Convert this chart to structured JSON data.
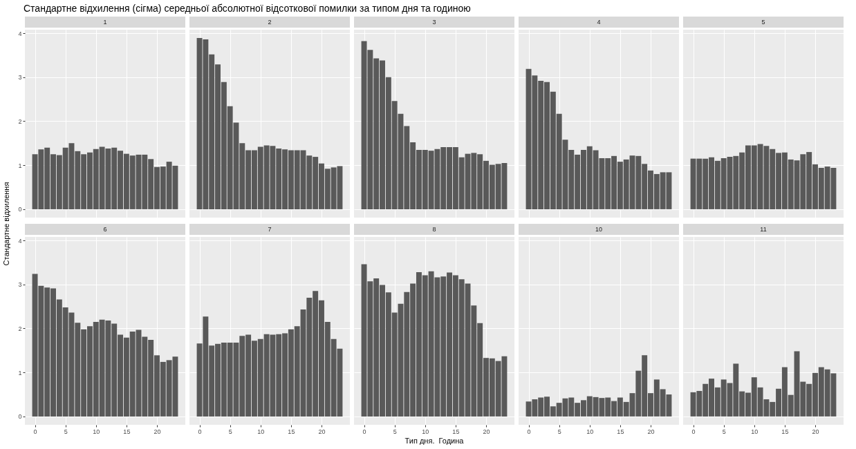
{
  "chart_data": [
    {
      "type": "bar",
      "title": "1",
      "annotations": [
        "Стандартне відхилення (сігма) середньої абсолютної відсоткової помилки за типом дня та годиною"
      ],
      "ylabel": "Стандартне відхилення",
      "color": "#595959",
      "x": [
        0,
        1,
        2,
        3,
        4,
        5,
        6,
        7,
        8,
        9,
        10,
        11,
        12,
        13,
        14,
        15,
        16,
        17,
        18,
        19,
        20,
        21,
        22,
        23
      ],
      "values": [
        1.25,
        1.36,
        1.4,
        1.25,
        1.23,
        1.4,
        1.5,
        1.32,
        1.25,
        1.29,
        1.37,
        1.42,
        1.38,
        1.4,
        1.33,
        1.26,
        1.22,
        1.24,
        1.24,
        1.14,
        0.96,
        0.97,
        1.08,
        0.99
      ],
      "xlim": [
        -1.65,
        24.65
      ],
      "xticks": [
        0,
        5,
        10,
        15,
        20
      ],
      "ylim": [
        -0.19,
        4.08
      ],
      "yticks": [
        0,
        1,
        2,
        3,
        4
      ],
      "grid": true,
      "tick_labels": "y"
    },
    {
      "type": "bar",
      "title": "2",
      "color": "#595959",
      "x": [
        0,
        1,
        2,
        3,
        4,
        5,
        6,
        7,
        8,
        9,
        10,
        11,
        12,
        13,
        14,
        15,
        16,
        17,
        18,
        19,
        20,
        21,
        22,
        23
      ],
      "values": [
        3.89,
        3.86,
        3.52,
        3.29,
        2.89,
        2.34,
        1.97,
        1.5,
        1.34,
        1.34,
        1.42,
        1.45,
        1.44,
        1.38,
        1.36,
        1.34,
        1.34,
        1.34,
        1.22,
        1.19,
        1.04,
        0.92,
        0.95,
        0.98
      ],
      "xlim": [
        -1.65,
        24.65
      ],
      "xticks": [
        0,
        5,
        10,
        15,
        20
      ],
      "ylim": [
        -0.19,
        4.08
      ],
      "yticks": [
        0,
        1,
        2,
        3,
        4
      ],
      "grid": true,
      "tick_labels": false
    },
    {
      "type": "bar",
      "title": "3",
      "color": "#595959",
      "x": [
        0,
        1,
        2,
        3,
        4,
        5,
        6,
        7,
        8,
        9,
        10,
        11,
        12,
        13,
        14,
        15,
        16,
        17,
        18,
        19,
        20,
        21,
        22,
        23
      ],
      "values": [
        3.82,
        3.62,
        3.43,
        3.38,
        3.0,
        2.46,
        2.17,
        1.89,
        1.52,
        1.35,
        1.35,
        1.33,
        1.37,
        1.41,
        1.41,
        1.41,
        1.18,
        1.26,
        1.28,
        1.25,
        1.1,
        1.01,
        1.03,
        1.05
      ],
      "xlim": [
        -1.65,
        24.65
      ],
      "xticks": [
        0,
        5,
        10,
        15,
        20
      ],
      "ylim": [
        -0.19,
        4.08
      ],
      "yticks": [
        0,
        1,
        2,
        3,
        4
      ],
      "grid": true,
      "tick_labels": false
    },
    {
      "type": "bar",
      "title": "4",
      "color": "#595959",
      "x": [
        0,
        1,
        2,
        3,
        4,
        5,
        6,
        7,
        8,
        9,
        10,
        11,
        12,
        13,
        14,
        15,
        16,
        17,
        18,
        19,
        20,
        21,
        22,
        23
      ],
      "values": [
        3.19,
        3.04,
        2.92,
        2.89,
        2.67,
        2.17,
        1.58,
        1.35,
        1.24,
        1.35,
        1.43,
        1.34,
        1.16,
        1.16,
        1.21,
        1.08,
        1.13,
        1.22,
        1.21,
        1.03,
        0.88,
        0.8,
        0.84,
        0.84
      ],
      "xlim": [
        -1.65,
        24.65
      ],
      "xticks": [
        0,
        5,
        10,
        15,
        20
      ],
      "ylim": [
        -0.19,
        4.08
      ],
      "yticks": [
        0,
        1,
        2,
        3,
        4
      ],
      "grid": true,
      "tick_labels": false
    },
    {
      "type": "bar",
      "title": "5",
      "color": "#595959",
      "x": [
        0,
        1,
        2,
        3,
        4,
        5,
        6,
        7,
        8,
        9,
        10,
        11,
        12,
        13,
        14,
        15,
        16,
        17,
        18,
        19,
        20,
        21,
        22,
        23
      ],
      "values": [
        1.15,
        1.15,
        1.15,
        1.18,
        1.1,
        1.16,
        1.19,
        1.21,
        1.29,
        1.45,
        1.45,
        1.48,
        1.44,
        1.37,
        1.28,
        1.29,
        1.13,
        1.11,
        1.25,
        1.3,
        1.02,
        0.94,
        0.97,
        0.94
      ],
      "xlim": [
        -1.65,
        24.65
      ],
      "xticks": [
        0,
        5,
        10,
        15,
        20
      ],
      "ylim": [
        -0.19,
        4.08
      ],
      "yticks": [
        0,
        1,
        2,
        3,
        4
      ],
      "grid": true,
      "tick_labels": false
    },
    {
      "type": "bar",
      "title": "6",
      "color": "#595959",
      "x": [
        0,
        1,
        2,
        3,
        4,
        5,
        6,
        7,
        8,
        9,
        10,
        11,
        12,
        13,
        14,
        15,
        16,
        17,
        18,
        19,
        20,
        21,
        22,
        23
      ],
      "values": [
        3.24,
        2.97,
        2.93,
        2.91,
        2.66,
        2.48,
        2.36,
        2.13,
        1.98,
        2.05,
        2.15,
        2.2,
        2.18,
        2.11,
        1.86,
        1.79,
        1.93,
        1.97,
        1.81,
        1.74,
        1.39,
        1.24,
        1.28,
        1.36
      ],
      "xlim": [
        -1.65,
        24.65
      ],
      "xticks": [
        0,
        5,
        10,
        15,
        20
      ],
      "ylim": [
        -0.19,
        4.08
      ],
      "yticks": [
        0,
        1,
        2,
        3,
        4
      ],
      "grid": true
    },
    {
      "type": "bar",
      "title": "7",
      "color": "#595959",
      "x": [
        0,
        1,
        2,
        3,
        4,
        5,
        6,
        7,
        8,
        9,
        10,
        11,
        12,
        13,
        14,
        15,
        16,
        17,
        18,
        19,
        20,
        21,
        22,
        23
      ],
      "values": [
        1.66,
        2.27,
        1.61,
        1.65,
        1.68,
        1.68,
        1.68,
        1.83,
        1.86,
        1.72,
        1.76,
        1.87,
        1.86,
        1.87,
        1.89,
        1.98,
        2.05,
        2.43,
        2.7,
        2.85,
        2.64,
        2.15,
        1.76,
        1.54
      ],
      "xlim": [
        -1.65,
        24.65
      ],
      "xticks": [
        0,
        5,
        10,
        15,
        20
      ],
      "ylim": [
        -0.19,
        4.08
      ],
      "yticks": [
        0,
        1,
        2,
        3,
        4
      ],
      "grid": true,
      "tick_labels": "x"
    },
    {
      "type": "bar",
      "title": "8",
      "xlabel": "Тип дня.  Година",
      "color": "#595959",
      "x": [
        0,
        1,
        2,
        3,
        4,
        5,
        6,
        7,
        8,
        9,
        10,
        11,
        12,
        13,
        14,
        15,
        16,
        17,
        18,
        19,
        20,
        21,
        22,
        23
      ],
      "values": [
        3.46,
        3.07,
        3.14,
        2.99,
        2.82,
        2.36,
        2.56,
        2.83,
        3.02,
        3.28,
        3.21,
        3.3,
        3.16,
        3.18,
        3.27,
        3.21,
        3.12,
        3.02,
        2.52,
        2.12,
        1.33,
        1.32,
        1.26,
        1.37
      ],
      "xlim": [
        -1.65,
        24.65
      ],
      "xticks": [
        0,
        5,
        10,
        15,
        20
      ],
      "ylim": [
        -0.19,
        4.08
      ],
      "yticks": [
        0,
        1,
        2,
        3,
        4
      ],
      "grid": true,
      "tick_labels": "x"
    },
    {
      "type": "bar",
      "title": "10",
      "color": "#595959",
      "x": [
        0,
        1,
        2,
        3,
        4,
        5,
        6,
        7,
        8,
        9,
        10,
        11,
        12,
        13,
        14,
        15,
        16,
        17,
        18,
        19,
        20,
        21,
        22,
        23
      ],
      "values": [
        0.34,
        0.39,
        0.43,
        0.45,
        0.23,
        0.31,
        0.41,
        0.43,
        0.31,
        0.37,
        0.46,
        0.44,
        0.42,
        0.43,
        0.35,
        0.43,
        0.33,
        0.53,
        1.04,
        1.39,
        0.53,
        0.84,
        0.62,
        0.5
      ],
      "xlim": [
        -1.65,
        24.65
      ],
      "xticks": [
        0,
        5,
        10,
        15,
        20
      ],
      "ylim": [
        -0.19,
        4.08
      ],
      "yticks": [
        0,
        1,
        2,
        3,
        4
      ],
      "grid": true,
      "tick_labels": "x"
    },
    {
      "type": "bar",
      "title": "11",
      "color": "#595959",
      "x": [
        0,
        1,
        2,
        3,
        4,
        5,
        6,
        7,
        8,
        9,
        10,
        11,
        12,
        13,
        14,
        15,
        16,
        17,
        18,
        19,
        20,
        21,
        22,
        23
      ],
      "values": [
        0.55,
        0.58,
        0.74,
        0.86,
        0.66,
        0.84,
        0.76,
        1.2,
        0.57,
        0.54,
        0.89,
        0.66,
        0.39,
        0.33,
        0.63,
        1.12,
        0.49,
        1.48,
        0.79,
        0.74,
        0.99,
        1.12,
        1.07,
        0.98
      ],
      "xlim": [
        -1.65,
        24.65
      ],
      "xticks": [
        0,
        5,
        10,
        15,
        20
      ],
      "ylim": [
        -0.19,
        4.08
      ],
      "yticks": [
        0,
        1,
        2,
        3,
        4
      ],
      "grid": true,
      "tick_labels": "x"
    }
  ]
}
